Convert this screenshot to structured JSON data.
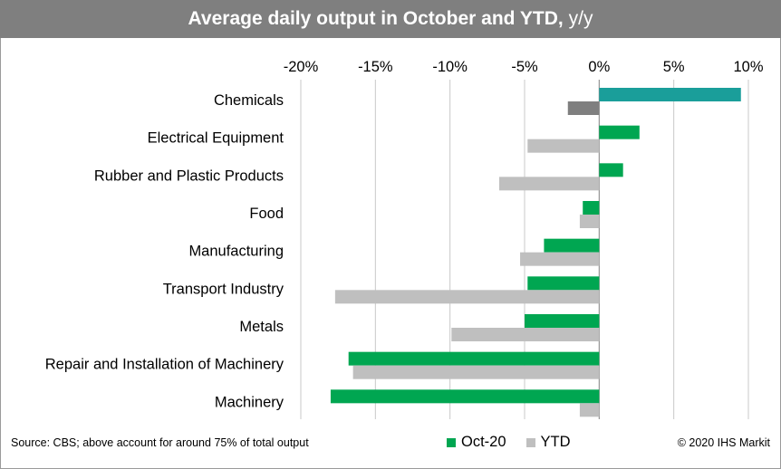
{
  "title": {
    "main": "Average daily output in October and YTD,",
    "suffix": "y/y"
  },
  "source_text": "Source: CBS; above account for around 75% of total output",
  "copyright_text": "© 2020 IHS Markit",
  "colors": {
    "oct20": "#00a651",
    "ytd": "#bfbfbf",
    "highlight_oct20": "#1a9e9a",
    "highlight_ytd": "#7f7f7f",
    "gridline": "#c8c8c8",
    "title_bar": "#7f7f7f"
  },
  "chart_data": {
    "type": "bar",
    "orientation": "horizontal",
    "title": "Average daily output in October and YTD, y/y",
    "xlabel": "",
    "ylabel": "",
    "xlim": [
      -20,
      10
    ],
    "x_ticks": [
      -20,
      -15,
      -10,
      -5,
      0,
      5,
      10
    ],
    "x_tick_labels": [
      "-20%",
      "-15%",
      "-10%",
      "-5%",
      "0%",
      "5%",
      "10%"
    ],
    "axis_position": "top",
    "grid": true,
    "legend": "bottom",
    "categories": [
      "Chemicals",
      "Electrical Equipment",
      "Rubber and Plastic Products",
      "Food",
      "Manufacturing",
      "Transport Industry",
      "Metals",
      "Repair and Installation of Machinery",
      "Machinery"
    ],
    "series": [
      {
        "name": "Oct-20",
        "values": [
          9.5,
          2.7,
          1.6,
          -1.1,
          -3.7,
          -4.8,
          -5.0,
          -16.8,
          -18.0
        ]
      },
      {
        "name": "YTD",
        "values": [
          -2.1,
          -4.8,
          -6.7,
          -1.3,
          -5.3,
          -17.7,
          -9.9,
          -16.5,
          -1.3
        ]
      }
    ],
    "highlighted_category": "Chemicals"
  }
}
